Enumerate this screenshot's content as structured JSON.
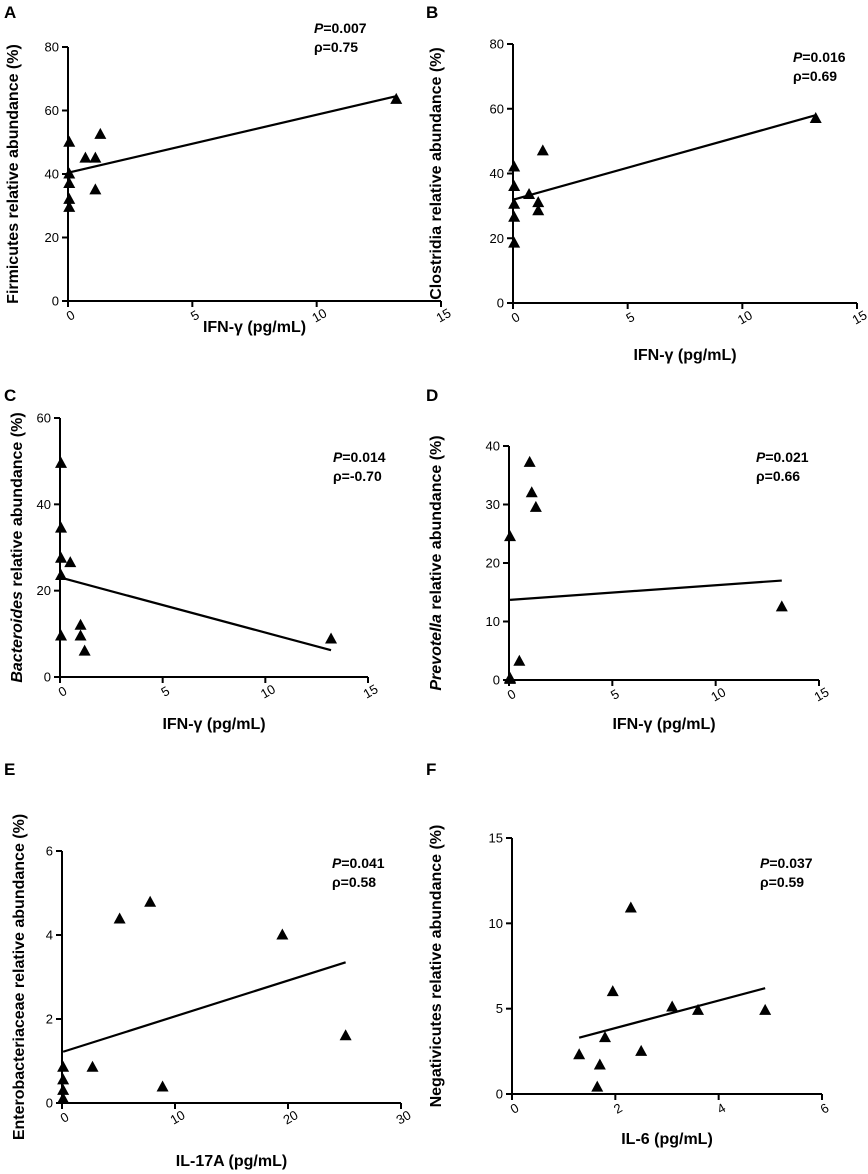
{
  "chart_data": [
    {
      "type": "scatter",
      "panel_label": "A",
      "xlabel_main": "IFN-γ",
      "xlabel_unit": " (pg/mL)",
      "ylabel_italic": "",
      "ylabel_rest": "Firmicutes relative abundance (%)",
      "xlim": [
        0,
        15
      ],
      "ylim": [
        0,
        80
      ],
      "xticks": [
        0,
        5,
        10,
        15
      ],
      "yticks": [
        0,
        20,
        40,
        60,
        80
      ],
      "xtick_labels": [
        "0",
        "5",
        "10",
        "15"
      ],
      "ytick_labels": [
        "0",
        "20",
        "40",
        "60",
        "80"
      ],
      "stat_p_label": "P",
      "stat_p_value": "=0.007",
      "stat_rho": "ρ=0.75",
      "points": [
        [
          0.05,
          50
        ],
        [
          0.05,
          40
        ],
        [
          0.05,
          37
        ],
        [
          0.05,
          32
        ],
        [
          0.05,
          29.5
        ],
        [
          0.7,
          45
        ],
        [
          1.1,
          45
        ],
        [
          1.3,
          52.5
        ],
        [
          1.1,
          35
        ],
        [
          13.2,
          63.5
        ]
      ],
      "fit_line": [
        [
          0.05,
          40.5
        ],
        [
          13.2,
          64.5
        ]
      ]
    },
    {
      "type": "scatter",
      "panel_label": "B",
      "xlabel_main": "IFN-γ",
      "xlabel_unit": " (pg/mL)",
      "ylabel_italic": "",
      "ylabel_rest": "Clostridia relative abundance (%)",
      "xlim": [
        0,
        15
      ],
      "ylim": [
        0,
        80
      ],
      "xticks": [
        0,
        5,
        10,
        15
      ],
      "yticks": [
        0,
        20,
        40,
        60,
        80
      ],
      "xtick_labels": [
        "0",
        "5",
        "10",
        "15"
      ],
      "ytick_labels": [
        "0",
        "20",
        "40",
        "60",
        "80"
      ],
      "stat_p_label": "P",
      "stat_p_value": "=0.016",
      "stat_rho": "ρ=0.69",
      "points": [
        [
          0.05,
          42
        ],
        [
          0.05,
          36
        ],
        [
          0.05,
          30.5
        ],
        [
          0.05,
          26.5
        ],
        [
          0.05,
          18.5
        ],
        [
          0.7,
          33.5
        ],
        [
          1.1,
          31
        ],
        [
          1.1,
          28.5
        ],
        [
          1.3,
          47
        ],
        [
          13.2,
          57
        ]
      ],
      "fit_line": [
        [
          0.05,
          32
        ],
        [
          13.2,
          58
        ]
      ]
    },
    {
      "type": "scatter",
      "panel_label": "C",
      "xlabel_main": "IFN-γ",
      "xlabel_unit": " (pg/mL)",
      "ylabel_italic": "Bacteroides",
      "ylabel_rest": " relative abundance (%)",
      "xlim": [
        0,
        15
      ],
      "ylim": [
        0,
        60
      ],
      "xticks": [
        0,
        5,
        10,
        15
      ],
      "yticks": [
        0,
        20,
        40,
        60
      ],
      "xtick_labels": [
        "0",
        "5",
        "10",
        "15"
      ],
      "ytick_labels": [
        "0",
        "20",
        "40",
        "60"
      ],
      "stat_p_label": "P",
      "stat_p_value": "=0.014",
      "stat_rho": "ρ=-0.70",
      "points": [
        [
          0.05,
          49.5
        ],
        [
          0.05,
          34.5
        ],
        [
          0.05,
          27.5
        ],
        [
          0.05,
          23.5
        ],
        [
          0.05,
          9.5
        ],
        [
          0.5,
          26.5
        ],
        [
          1.0,
          12
        ],
        [
          1.0,
          9.5
        ],
        [
          1.2,
          6
        ],
        [
          13.2,
          8.8
        ]
      ],
      "fit_line": [
        [
          0.05,
          23
        ],
        [
          13.2,
          6.2
        ]
      ]
    },
    {
      "type": "scatter",
      "panel_label": "D",
      "xlabel_main": "IFN-γ",
      "xlabel_unit": " (pg/mL)",
      "ylabel_italic": "Prevotella",
      "ylabel_rest": " relative abundance (%)",
      "xlim": [
        0,
        15
      ],
      "ylim": [
        0,
        40
      ],
      "xticks": [
        0,
        5,
        10,
        15
      ],
      "yticks": [
        0,
        10,
        20,
        30,
        40
      ],
      "xtick_labels": [
        "0",
        "5",
        "10",
        "15"
      ],
      "ytick_labels": [
        "0",
        "10",
        "20",
        "30",
        "40"
      ],
      "stat_p_label": "P",
      "stat_p_value": "=0.021",
      "stat_rho": "ρ=0.66",
      "points": [
        [
          0.05,
          24.5
        ],
        [
          0.05,
          0.3
        ],
        [
          0.05,
          0.1
        ],
        [
          0.5,
          3.2
        ],
        [
          1.0,
          37.2
        ],
        [
          1.1,
          32
        ],
        [
          1.3,
          29.5
        ],
        [
          13.2,
          12.5
        ]
      ],
      "fit_line": [
        [
          0.05,
          13.7
        ],
        [
          13.2,
          17
        ]
      ]
    },
    {
      "type": "scatter",
      "panel_label": "E",
      "xlabel_main": "IL-17A",
      "xlabel_unit": " (pg/mL)",
      "ylabel_italic": "",
      "ylabel_rest": "Enterobacteriaceae relative abundance (%)",
      "xlim": [
        0,
        30
      ],
      "ylim": [
        0,
        6
      ],
      "xticks": [
        0,
        10,
        20,
        30
      ],
      "yticks": [
        0,
        2,
        4,
        6
      ],
      "xtick_labels": [
        "0",
        "10",
        "20",
        "30"
      ],
      "ytick_labels": [
        "0",
        "2",
        "4",
        "6"
      ],
      "stat_p_label": "P",
      "stat_p_value": "=0.041",
      "stat_rho": "ρ=0.58",
      "points": [
        [
          0.1,
          0.85
        ],
        [
          0.1,
          0.55
        ],
        [
          0.1,
          0.3
        ],
        [
          0.1,
          0.1
        ],
        [
          2.7,
          0.85
        ],
        [
          5.1,
          4.38
        ],
        [
          7.8,
          4.78
        ],
        [
          8.9,
          0.38
        ],
        [
          19.5,
          4.0
        ],
        [
          25.1,
          1.6
        ]
      ],
      "fit_line": [
        [
          0.1,
          1.22
        ],
        [
          25.1,
          3.35
        ]
      ]
    },
    {
      "type": "scatter",
      "panel_label": "F",
      "xlabel_main": "IL-6",
      "xlabel_unit": " (pg/mL)",
      "ylabel_italic": "",
      "ylabel_rest": "Negativicutes relative abundance (%)",
      "xlim": [
        0,
        6
      ],
      "ylim": [
        0,
        15
      ],
      "xticks": [
        0,
        2,
        4,
        6
      ],
      "yticks": [
        0,
        5,
        10,
        15
      ],
      "xtick_labels": [
        "0",
        "2",
        "4",
        "6"
      ],
      "ytick_labels": [
        "0",
        "5",
        "10",
        "15"
      ],
      "stat_p_label": "P",
      "stat_p_value": "=0.037",
      "stat_rho": "ρ=0.59",
      "points": [
        [
          1.3,
          2.3
        ],
        [
          1.65,
          0.4
        ],
        [
          1.7,
          1.7
        ],
        [
          1.8,
          3.3
        ],
        [
          1.95,
          6.0
        ],
        [
          2.3,
          10.9
        ],
        [
          2.5,
          2.5
        ],
        [
          3.1,
          5.1
        ],
        [
          3.6,
          4.9
        ],
        [
          4.9,
          4.9
        ]
      ],
      "fit_line": [
        [
          1.3,
          3.3
        ],
        [
          4.9,
          6.2
        ]
      ]
    }
  ]
}
